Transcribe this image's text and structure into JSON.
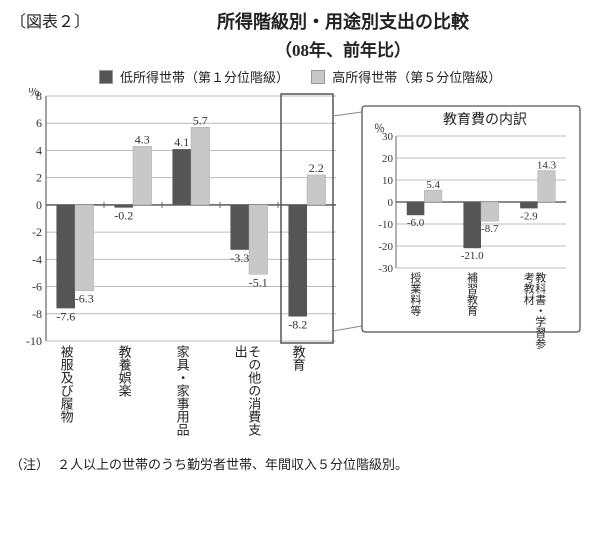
{
  "figure_label": "〔図表２〕",
  "title": "所得階級別・用途別支出の比較",
  "subtitle": "（08年、前年比）",
  "legend": {
    "low": {
      "label": "低所得世帯（第１分位階級）",
      "color": "#555555"
    },
    "high": {
      "label": "高所得世帯（第５分位階級）",
      "color": "#c8c8c8"
    }
  },
  "main_chart": {
    "type": "bar",
    "y_unit": "％",
    "ylim": [
      -10,
      8
    ],
    "ytick_step": 2,
    "categories": [
      "被服及び履物",
      "教養娯楽",
      "家具・家事用品",
      "その他の消費支出",
      "教育"
    ],
    "low_values": [
      -7.6,
      -0.2,
      4.1,
      -3.3,
      -8.2
    ],
    "high_values": [
      -6.3,
      4.3,
      5.7,
      -5.1,
      2.2
    ],
    "highlight_index": 4,
    "colors": {
      "low": "#555555",
      "high": "#c8c8c8"
    },
    "grid_color": "#bcbcbc",
    "axis_color": "#666666",
    "background_color": "#ffffff",
    "label_fontsize": 12,
    "bar_group_width": 0.64
  },
  "inset_chart": {
    "title": "教育費の内訳",
    "type": "bar",
    "y_unit": "％",
    "ylim": [
      -30,
      30
    ],
    "ytick_step": 10,
    "categories": [
      "授業料等",
      "補習教育",
      "教科書・学習参考教材"
    ],
    "low_values": [
      -6.0,
      -21.0,
      -2.9
    ],
    "high_values": [
      5.4,
      -8.7,
      14.3
    ],
    "colors": {
      "low": "#555555",
      "high": "#c8c8c8"
    },
    "grid_color": "#bcbcbc",
    "axis_color": "#666666",
    "background_color": "#ffffff",
    "border_color": "#555555"
  },
  "footnote": {
    "head": "（注）",
    "body": "２人以上の世帯のうち勤労者世帯、年間収入５分位階級別。"
  }
}
